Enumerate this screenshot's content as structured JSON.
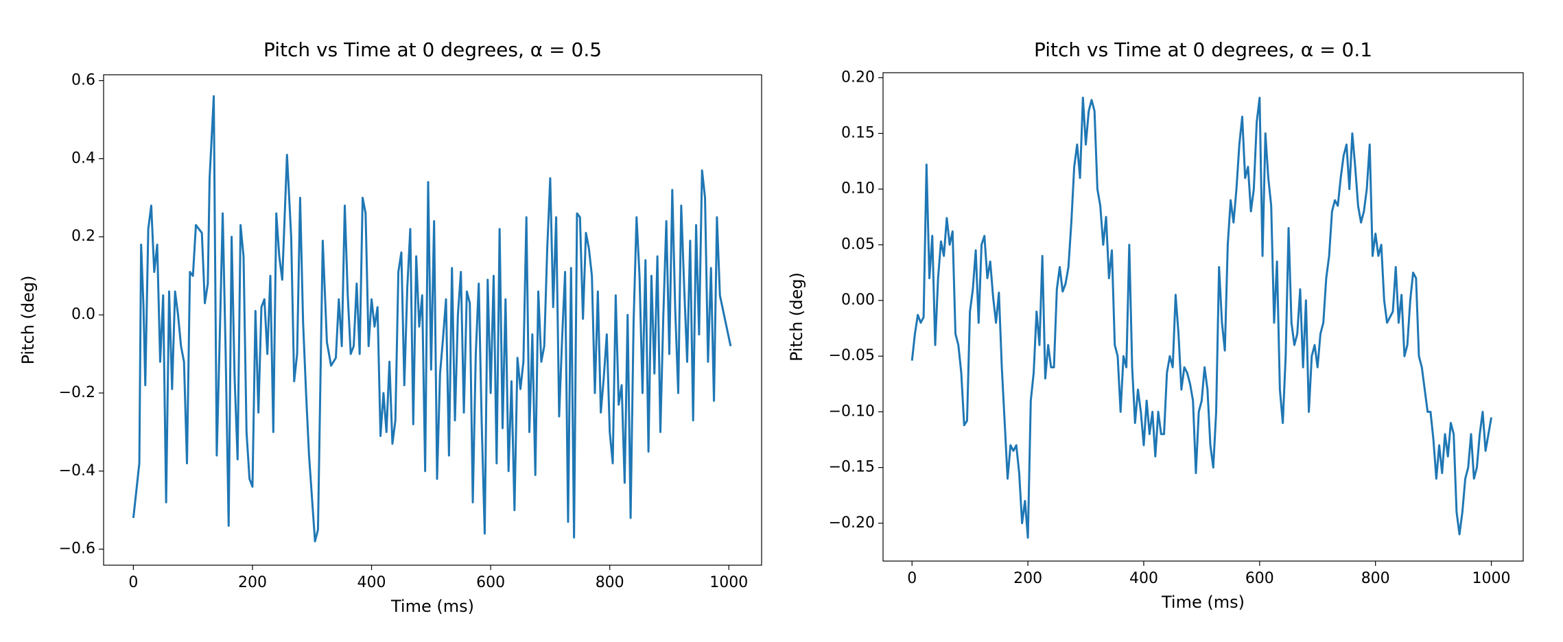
{
  "chart_data": [
    {
      "type": "line",
      "title": "Pitch vs Time at 0 degrees, α = 0.5",
      "xlabel": "Time (ms)",
      "ylabel": "Pitch (deg)",
      "color": "#1f77b4",
      "x": [
        0,
        10,
        13,
        17,
        20,
        25,
        30,
        35,
        40,
        45,
        50,
        55,
        60,
        65,
        70,
        75,
        80,
        85,
        90,
        95,
        100,
        105,
        115,
        120,
        125,
        128,
        135,
        140,
        145,
        150,
        155,
        160,
        165,
        170,
        175,
        180,
        185,
        190,
        195,
        200,
        205,
        210,
        215,
        220,
        225,
        230,
        235,
        240,
        245,
        250,
        258,
        265,
        270,
        275,
        280,
        285,
        290,
        295,
        305,
        310,
        318,
        325,
        332,
        340,
        345,
        350,
        355,
        360,
        365,
        370,
        375,
        380,
        385,
        390,
        395,
        400,
        405,
        410,
        415,
        420,
        425,
        430,
        435,
        440,
        445,
        450,
        455,
        460,
        465,
        470,
        475,
        480,
        485,
        490,
        495,
        500,
        505,
        510,
        515,
        520,
        525,
        530,
        535,
        540,
        545,
        550,
        555,
        560,
        565,
        570,
        575,
        580,
        585,
        590,
        595,
        600,
        605,
        610,
        615,
        620,
        625,
        630,
        635,
        640,
        645,
        650,
        655,
        660,
        665,
        670,
        675,
        680,
        685,
        690,
        695,
        700,
        705,
        710,
        715,
        720,
        725,
        730,
        735,
        740,
        745,
        750,
        755,
        760,
        765,
        770,
        775,
        780,
        785,
        790,
        795,
        800,
        805,
        810,
        815,
        820,
        825,
        830,
        835,
        840,
        845,
        850,
        855,
        860,
        865,
        870,
        875,
        880,
        885,
        890,
        895,
        900,
        905,
        910,
        915,
        920,
        925,
        930,
        935,
        940,
        945,
        950,
        955,
        960,
        965,
        970,
        975,
        980,
        985,
        1003
      ],
      "values": [
        -0.52,
        -0.38,
        0.18,
        0.02,
        -0.18,
        0.22,
        0.28,
        0.11,
        0.18,
        -0.12,
        0.05,
        -0.48,
        0.06,
        -0.19,
        0.06,
        0.0,
        -0.08,
        -0.12,
        -0.38,
        0.11,
        0.1,
        0.23,
        0.21,
        0.03,
        0.08,
        0.35,
        0.56,
        -0.36,
        -0.06,
        0.26,
        -0.1,
        -0.54,
        0.2,
        -0.16,
        -0.37,
        0.23,
        0.15,
        -0.3,
        -0.42,
        -0.44,
        0.01,
        -0.25,
        0.02,
        0.04,
        -0.1,
        0.1,
        -0.3,
        0.26,
        0.15,
        0.09,
        0.41,
        0.2,
        -0.17,
        -0.1,
        0.3,
        -0.02,
        -0.2,
        -0.36,
        -0.58,
        -0.55,
        0.19,
        -0.07,
        -0.13,
        -0.11,
        0.04,
        -0.08,
        0.28,
        0.05,
        -0.1,
        -0.08,
        0.08,
        -0.1,
        0.3,
        0.26,
        -0.08,
        0.04,
        -0.03,
        0.02,
        -0.31,
        -0.2,
        -0.3,
        -0.12,
        -0.33,
        -0.27,
        0.11,
        0.16,
        -0.18,
        0.07,
        0.22,
        -0.28,
        0.15,
        -0.03,
        0.05,
        -0.4,
        0.34,
        -0.14,
        0.24,
        -0.42,
        -0.15,
        -0.06,
        0.04,
        -0.36,
        0.12,
        -0.27,
        0.0,
        0.11,
        -0.25,
        0.06,
        0.03,
        -0.48,
        -0.1,
        0.08,
        -0.28,
        -0.56,
        0.09,
        -0.2,
        0.1,
        -0.38,
        0.22,
        -0.29,
        0.04,
        -0.4,
        -0.17,
        -0.5,
        -0.11,
        -0.19,
        -0.12,
        0.25,
        -0.3,
        -0.05,
        -0.41,
        0.06,
        -0.12,
        -0.08,
        0.17,
        0.35,
        0.02,
        0.25,
        -0.26,
        -0.06,
        0.11,
        -0.53,
        0.12,
        -0.57,
        0.26,
        0.25,
        -0.01,
        0.21,
        0.17,
        0.1,
        -0.2,
        0.06,
        -0.25,
        -0.16,
        -0.05,
        -0.3,
        -0.38,
        0.05,
        -0.23,
        -0.18,
        -0.43,
        0.0,
        -0.52,
        -0.02,
        0.25,
        0.1,
        -0.2,
        0.14,
        -0.35,
        0.1,
        -0.15,
        0.15,
        -0.3,
        0.0,
        0.24,
        -0.1,
        0.32,
        0.01,
        -0.2,
        0.28,
        0.07,
        -0.12,
        0.19,
        -0.27,
        0.23,
        -0.05,
        0.37,
        0.3,
        -0.12,
        0.12,
        -0.22,
        0.25,
        0.05,
        -0.08
      ],
      "xlim": [
        -50,
        1055
      ],
      "xticks": [
        0,
        200,
        400,
        600,
        800,
        1000
      ],
      "ylim": [
        -0.641,
        0.615
      ],
      "yticks": [
        {
          "value": -0.6,
          "label": "−0.6"
        },
        {
          "value": -0.4,
          "label": "−0.4"
        },
        {
          "value": -0.2,
          "label": "−0.2"
        },
        {
          "value": 0,
          "label": "0.0"
        },
        0.2,
        0.4,
        0.6
      ]
    },
    {
      "type": "line",
      "title": "Pitch vs Time at 0 degrees, α = 0.1",
      "xlabel": "Time (ms)",
      "ylabel": "Pitch (deg)",
      "color": "#1f77b4",
      "x": [
        0,
        5,
        10,
        15,
        20,
        25,
        30,
        35,
        40,
        45,
        50,
        55,
        60,
        65,
        70,
        75,
        80,
        85,
        90,
        95,
        100,
        105,
        110,
        115,
        120,
        125,
        130,
        135,
        140,
        145,
        150,
        155,
        160,
        165,
        170,
        175,
        180,
        185,
        190,
        195,
        200,
        205,
        210,
        215,
        220,
        225,
        230,
        235,
        240,
        245,
        250,
        255,
        260,
        265,
        270,
        275,
        280,
        285,
        290,
        295,
        300,
        305,
        310,
        315,
        320,
        325,
        330,
        335,
        340,
        345,
        350,
        355,
        360,
        365,
        370,
        375,
        380,
        385,
        390,
        395,
        400,
        405,
        410,
        415,
        420,
        425,
        430,
        435,
        440,
        445,
        450,
        455,
        460,
        465,
        470,
        475,
        480,
        485,
        490,
        495,
        500,
        505,
        510,
        515,
        520,
        525,
        530,
        535,
        540,
        545,
        550,
        555,
        560,
        565,
        570,
        575,
        580,
        585,
        590,
        595,
        600,
        605,
        610,
        615,
        620,
        625,
        630,
        635,
        640,
        645,
        650,
        655,
        660,
        665,
        670,
        675,
        680,
        685,
        690,
        695,
        700,
        705,
        710,
        715,
        720,
        725,
        730,
        735,
        740,
        745,
        750,
        755,
        760,
        765,
        770,
        775,
        780,
        785,
        790,
        795,
        800,
        805,
        810,
        815,
        820,
        825,
        830,
        835,
        840,
        845,
        850,
        855,
        860,
        865,
        870,
        875,
        880,
        885,
        890,
        895,
        900,
        905,
        910,
        915,
        920,
        925,
        930,
        935,
        940,
        945,
        950,
        955,
        960,
        965,
        970,
        975,
        980,
        985,
        990,
        995,
        1000
      ],
      "values": [
        -0.054,
        -0.03,
        -0.013,
        -0.02,
        -0.015,
        0.122,
        0.02,
        0.058,
        -0.04,
        0.02,
        0.053,
        0.04,
        0.074,
        0.05,
        0.062,
        -0.03,
        -0.04,
        -0.065,
        -0.112,
        -0.108,
        -0.01,
        0.01,
        0.045,
        -0.02,
        0.05,
        0.058,
        0.02,
        0.035,
        0.003,
        -0.02,
        0.007,
        -0.06,
        -0.11,
        -0.16,
        -0.13,
        -0.135,
        -0.13,
        -0.155,
        -0.2,
        -0.18,
        -0.213,
        -0.09,
        -0.065,
        -0.01,
        -0.04,
        0.04,
        -0.07,
        -0.04,
        -0.06,
        -0.06,
        0.01,
        0.03,
        0.008,
        0.015,
        0.03,
        0.07,
        0.12,
        0.14,
        0.11,
        0.182,
        0.14,
        0.17,
        0.18,
        0.17,
        0.1,
        0.085,
        0.05,
        0.075,
        0.02,
        0.045,
        -0.04,
        -0.05,
        -0.1,
        -0.05,
        -0.06,
        0.05,
        -0.06,
        -0.11,
        -0.08,
        -0.1,
        -0.13,
        -0.09,
        -0.12,
        -0.1,
        -0.14,
        -0.1,
        -0.12,
        -0.12,
        -0.065,
        -0.05,
        -0.06,
        0.005,
        -0.03,
        -0.08,
        -0.06,
        -0.065,
        -0.075,
        -0.09,
        -0.155,
        -0.1,
        -0.09,
        -0.06,
        -0.08,
        -0.13,
        -0.15,
        -0.1,
        0.03,
        -0.02,
        -0.045,
        0.05,
        0.09,
        0.07,
        0.1,
        0.14,
        0.165,
        0.11,
        0.12,
        0.08,
        0.1,
        0.16,
        0.182,
        0.04,
        0.15,
        0.11,
        0.085,
        -0.02,
        0.035,
        -0.08,
        -0.11,
        -0.05,
        0.065,
        -0.02,
        -0.04,
        -0.03,
        0.01,
        -0.06,
        0.0,
        -0.1,
        -0.05,
        -0.04,
        -0.06,
        -0.03,
        -0.02,
        0.02,
        0.04,
        0.08,
        0.09,
        0.085,
        0.11,
        0.13,
        0.14,
        0.1,
        0.15,
        0.12,
        0.085,
        0.07,
        0.08,
        0.1,
        0.14,
        0.04,
        0.06,
        0.04,
        0.05,
        0.0,
        -0.02,
        -0.015,
        -0.01,
        0.03,
        -0.02,
        0.005,
        -0.05,
        -0.04,
        0.0,
        0.025,
        0.02,
        -0.05,
        -0.06,
        -0.08,
        -0.1,
        -0.1,
        -0.125,
        -0.16,
        -0.13,
        -0.155,
        -0.12,
        -0.14,
        -0.11,
        -0.12,
        -0.19,
        -0.21,
        -0.19,
        -0.16,
        -0.15,
        -0.12,
        -0.16,
        -0.15,
        -0.12,
        -0.1,
        -0.135,
        -0.12,
        -0.105
      ],
      "xlim": [
        -50,
        1055
      ],
      "xticks": [
        0,
        200,
        400,
        600,
        800,
        1000
      ],
      "ylim": [
        -0.234,
        0.2045
      ],
      "yticks": [
        {
          "value": -0.2,
          "label": "−0.20"
        },
        {
          "value": -0.15,
          "label": "−0.15"
        },
        {
          "value": -0.1,
          "label": "−0.10"
        },
        {
          "value": -0.05,
          "label": "−0.05"
        },
        {
          "value": 0,
          "label": "0.00"
        },
        0.05,
        {
          "value": 0.1,
          "label": "0.10"
        },
        0.15,
        {
          "value": 0.2,
          "label": "0.20"
        }
      ]
    }
  ]
}
